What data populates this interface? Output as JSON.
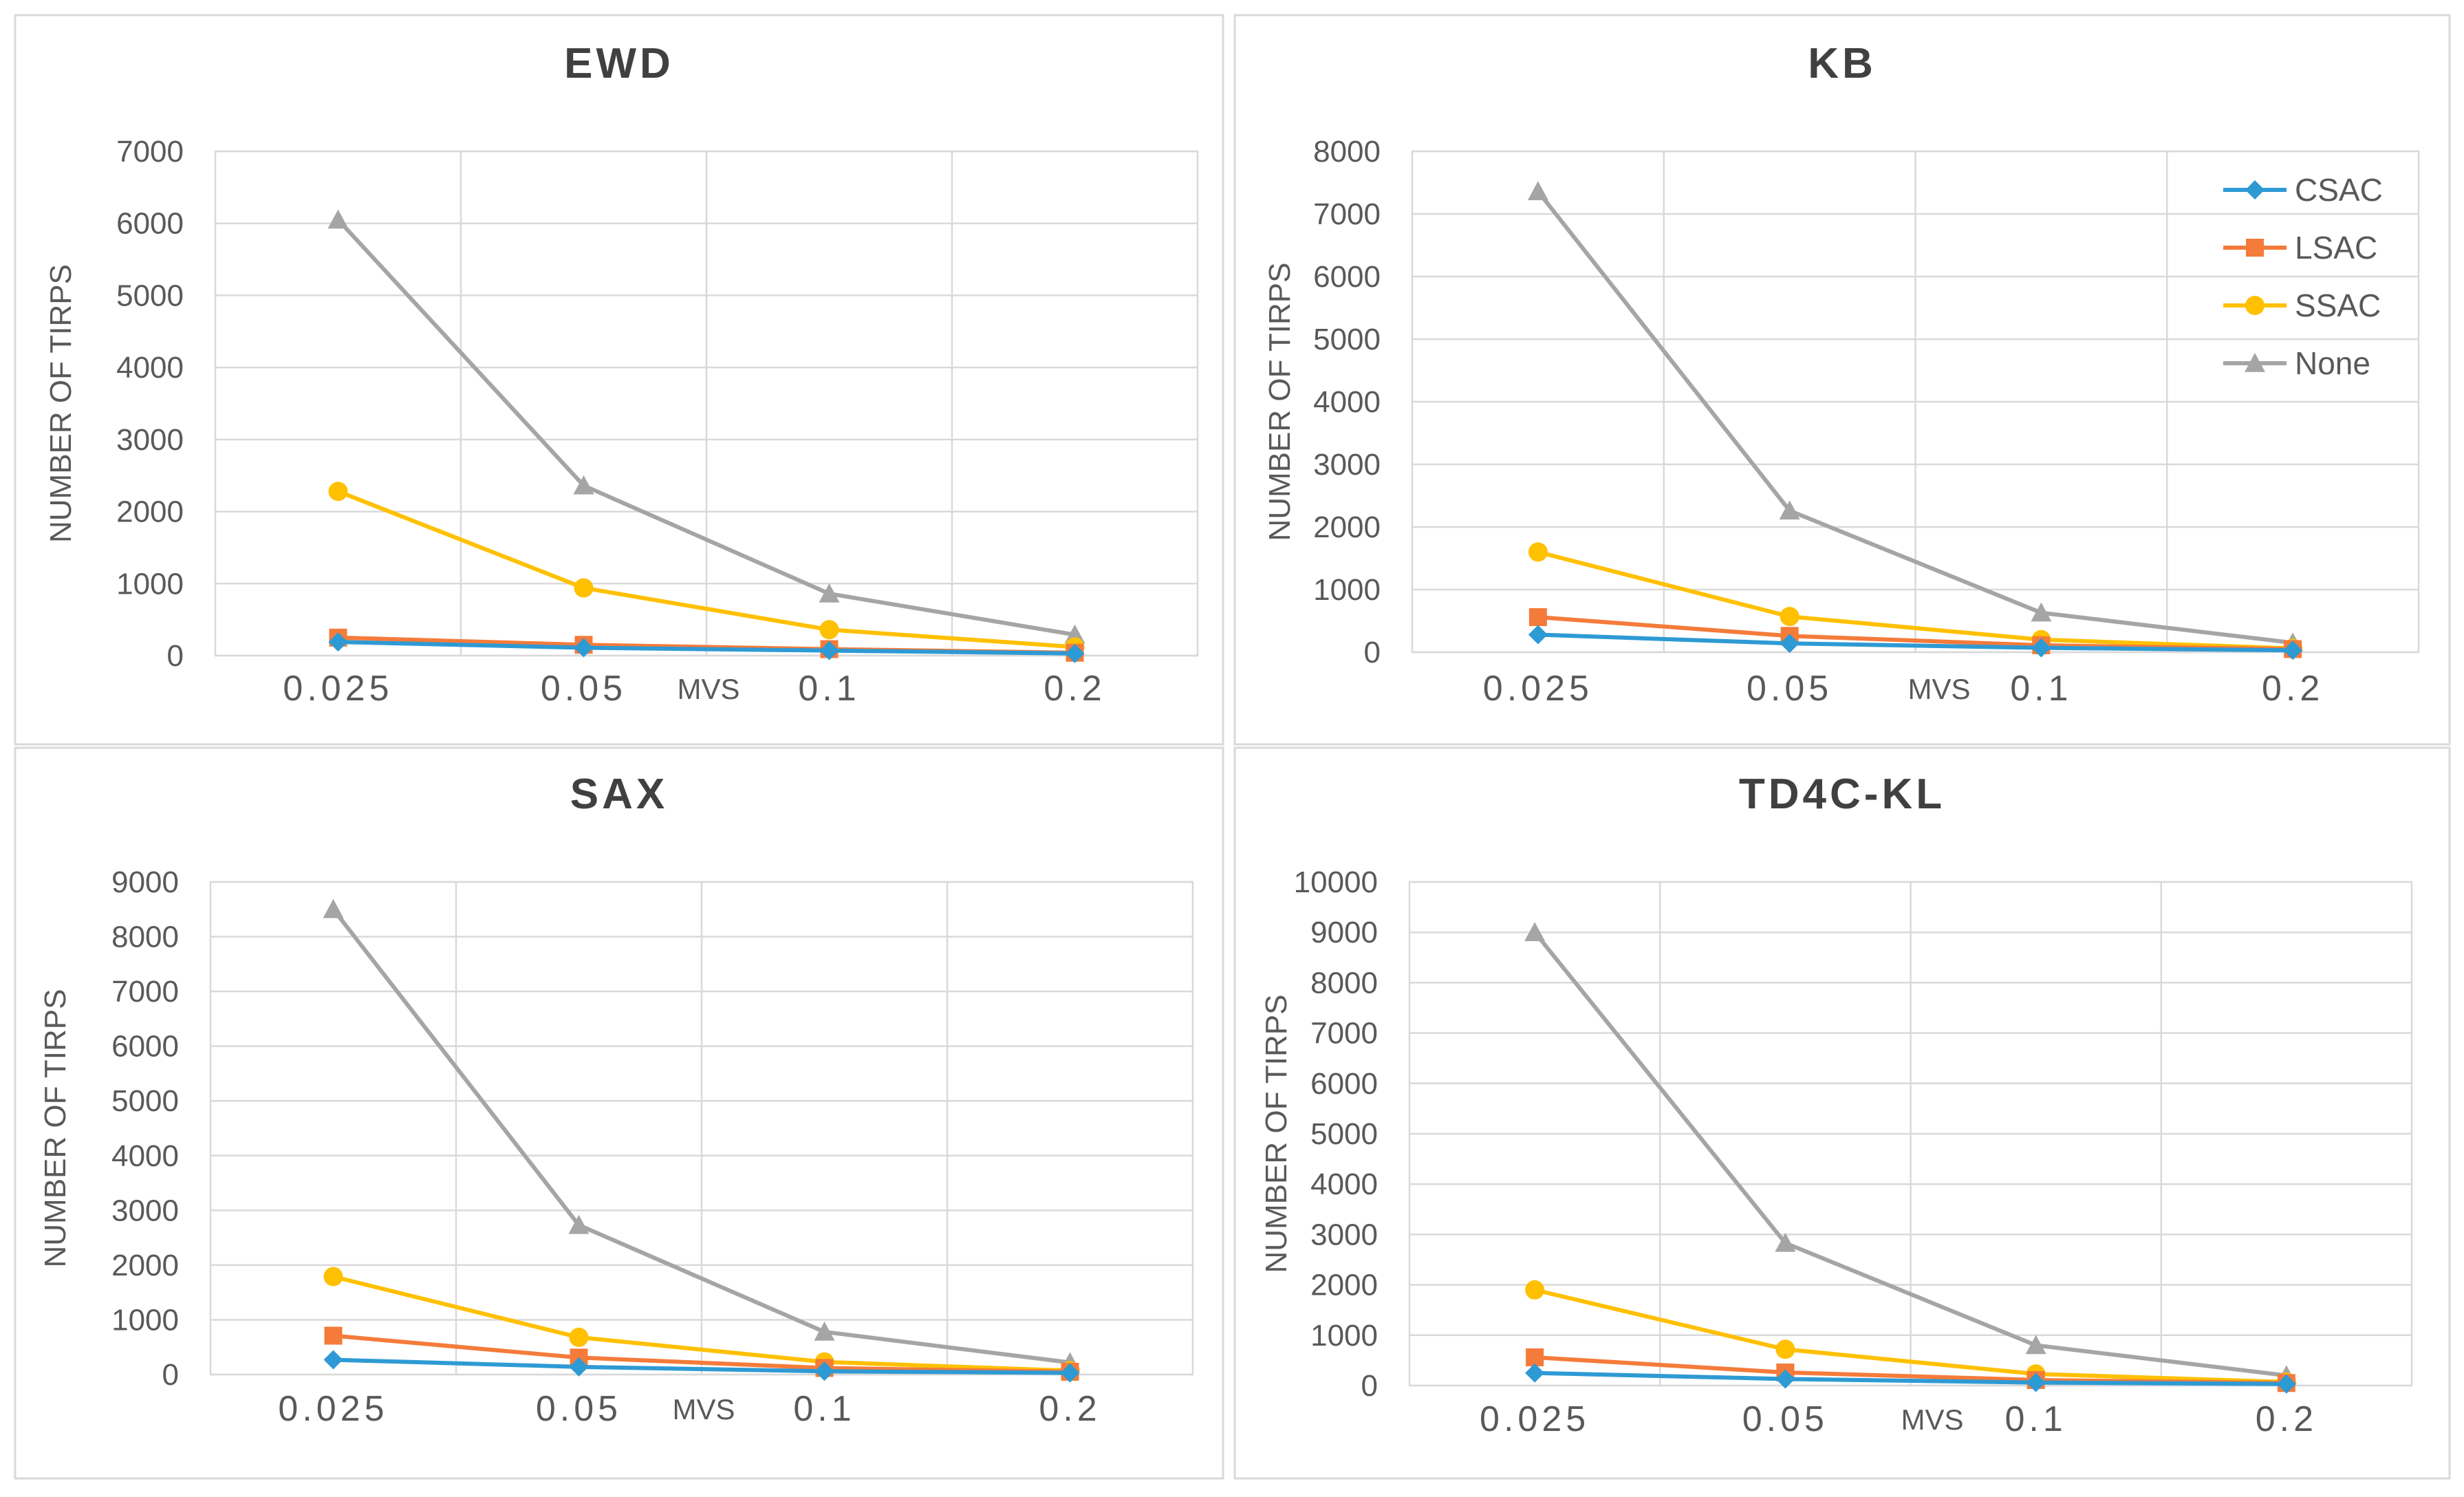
{
  "chart_data": [
    {
      "type": "line",
      "title": "EWD",
      "xlabel": "MVS",
      "ylabel": "NUMBER OF TIRPS",
      "categories": [
        "0.025",
        "0.05",
        "0.1",
        "0.2"
      ],
      "ylim": [
        0,
        7000
      ],
      "ytick_step": 1000,
      "yticks": [
        "0",
        "1000",
        "2000",
        "3000",
        "4000",
        "5000",
        "6000",
        "7000"
      ],
      "grid": true,
      "legend": null,
      "series": [
        {
          "name": "CSAC",
          "values": [
            190,
            110,
            70,
            30
          ]
        },
        {
          "name": "LSAC",
          "values": [
            250,
            150,
            90,
            40
          ]
        },
        {
          "name": "SSAC",
          "values": [
            2280,
            940,
            360,
            120
          ]
        },
        {
          "name": "None",
          "values": [
            6050,
            2360,
            860,
            290
          ]
        }
      ]
    },
    {
      "type": "line",
      "title": "KB",
      "xlabel": "MVS",
      "ylabel": "NUMBER OF TIRPS",
      "categories": [
        "0.025",
        "0.05",
        "0.1",
        "0.2"
      ],
      "ylim": [
        0,
        8000
      ],
      "ytick_step": 1000,
      "yticks": [
        "0",
        "1000",
        "2000",
        "3000",
        "4000",
        "5000",
        "6000",
        "7000",
        "8000"
      ],
      "grid": true,
      "legend": "top-right",
      "series": [
        {
          "name": "CSAC",
          "values": [
            280,
            140,
            70,
            30
          ]
        },
        {
          "name": "LSAC",
          "values": [
            560,
            260,
            110,
            50
          ]
        },
        {
          "name": "SSAC",
          "values": [
            1600,
            570,
            200,
            60
          ]
        },
        {
          "name": "None",
          "values": [
            7360,
            2260,
            630,
            150
          ]
        }
      ]
    },
    {
      "type": "line",
      "title": "SAX",
      "xlabel": "MVS",
      "ylabel": "NUMBER OF TIRPS",
      "categories": [
        "0.025",
        "0.05",
        "0.1",
        "0.2"
      ],
      "ylim": [
        0,
        9000
      ],
      "ytick_step": 1000,
      "yticks": [
        "0",
        "1000",
        "2000",
        "3000",
        "4000",
        "5000",
        "6000",
        "7000",
        "8000",
        "9000"
      ],
      "grid": true,
      "legend": null,
      "series": [
        {
          "name": "CSAC",
          "values": [
            270,
            140,
            60,
            30
          ]
        },
        {
          "name": "LSAC",
          "values": [
            710,
            310,
            120,
            50
          ]
        },
        {
          "name": "SSAC",
          "values": [
            1790,
            680,
            230,
            70
          ]
        },
        {
          "name": "None",
          "values": [
            8500,
            2730,
            780,
            220
          ]
        }
      ]
    },
    {
      "type": "line",
      "title": "TD4C-KL",
      "xlabel": "MVS",
      "ylabel": "NUMBER OF TIRPS",
      "categories": [
        "0.025",
        "0.05",
        "0.1",
        "0.2"
      ],
      "ylim": [
        0,
        10000
      ],
      "ytick_step": 1000,
      "yticks": [
        "0",
        "1000",
        "2000",
        "3000",
        "4000",
        "5000",
        "6000",
        "7000",
        "8000",
        "9000",
        "10000"
      ],
      "grid": true,
      "legend": null,
      "series": [
        {
          "name": "CSAC",
          "values": [
            250,
            130,
            60,
            30
          ]
        },
        {
          "name": "LSAC",
          "values": [
            560,
            260,
            110,
            50
          ]
        },
        {
          "name": "SSAC",
          "values": [
            1900,
            720,
            230,
            70
          ]
        },
        {
          "name": "None",
          "values": [
            9000,
            2830,
            800,
            200
          ]
        }
      ]
    }
  ],
  "series_style": {
    "CSAC": {
      "color": "#2E9AD4",
      "marker": "diamond"
    },
    "LSAC": {
      "color": "#F47B3A",
      "marker": "square"
    },
    "SSAC": {
      "color": "#FFC000",
      "marker": "circle"
    },
    "None": {
      "color": "#A5A5A5",
      "marker": "triangle"
    }
  }
}
